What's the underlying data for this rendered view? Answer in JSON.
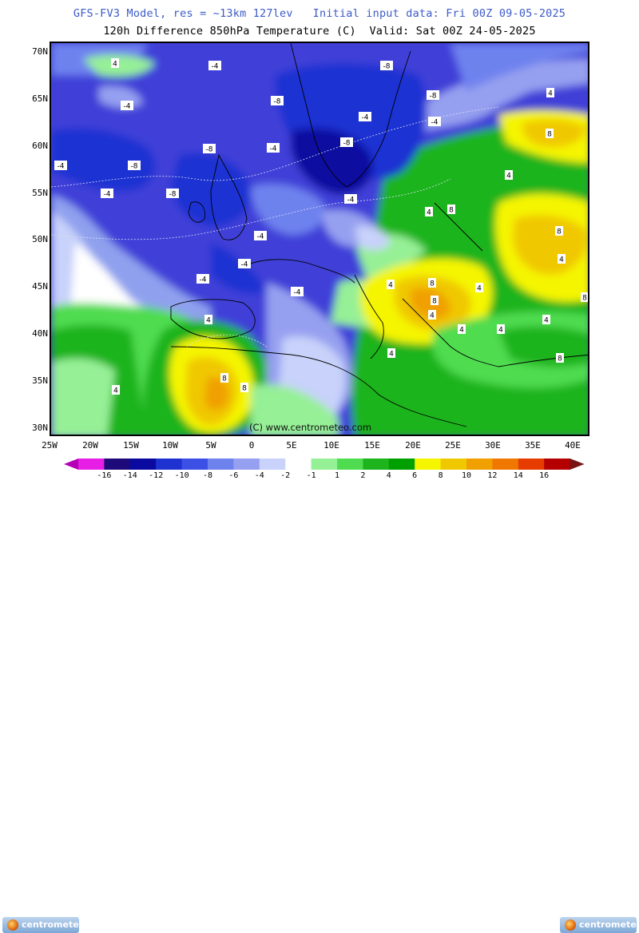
{
  "header": {
    "line1": "GFS-FV3 Model, res = ~13km 127lev   Initial input data: Fri 00Z 09-05-2025",
    "line2": "120h Difference 850hPa Temperature (C)  Valid: Sat 00Z 24-05-2025"
  },
  "axes": {
    "lat_labels": [
      "70N",
      "65N",
      "60N",
      "55N",
      "50N",
      "45N",
      "40N",
      "35N",
      "30N"
    ],
    "lon_labels": [
      "25W",
      "20W",
      "15W",
      "10W",
      "5W",
      "0",
      "5E",
      "10E",
      "15E",
      "20E",
      "25E",
      "30E",
      "35E",
      "40E"
    ]
  },
  "contour_labels": [
    {
      "text": "4"
    },
    {
      "text": "-4"
    },
    {
      "text": "-8"
    },
    {
      "text": "-4"
    },
    {
      "text": "-8"
    },
    {
      "text": "-4"
    },
    {
      "text": "-8"
    },
    {
      "text": "-4"
    },
    {
      "text": "-8"
    },
    {
      "text": "-8"
    },
    {
      "text": "-4"
    },
    {
      "text": "-4"
    },
    {
      "text": "-8"
    },
    {
      "text": "-4"
    },
    {
      "text": "-8"
    },
    {
      "text": "-4"
    },
    {
      "text": "-4"
    },
    {
      "text": "-4"
    },
    {
      "text": "-4"
    },
    {
      "text": "-4"
    },
    {
      "text": "4"
    },
    {
      "text": "4"
    },
    {
      "text": "8"
    },
    {
      "text": "4"
    },
    {
      "text": "4"
    },
    {
      "text": "8"
    },
    {
      "text": "8"
    },
    {
      "text": "8"
    },
    {
      "text": "4"
    },
    {
      "text": "8"
    },
    {
      "text": "8"
    },
    {
      "text": "4"
    },
    {
      "text": "4"
    },
    {
      "text": "4"
    },
    {
      "text": "8"
    },
    {
      "text": "4"
    },
    {
      "text": "8"
    },
    {
      "text": "8"
    },
    {
      "text": "4"
    },
    {
      "text": "4"
    },
    {
      "text": "4"
    },
    {
      "text": "4"
    }
  ],
  "credit": "(C) www.centrometeo.com",
  "legend": {
    "colors": [
      "#b400b4",
      "#e61ee6",
      "#1e0a78",
      "#0a0aa0",
      "#1e32d2",
      "#3c50e6",
      "#6e82ee",
      "#96a0f0",
      "#c8d2fa",
      "#ffffff",
      "#96f096",
      "#50dc50",
      "#1eb41e",
      "#00a000",
      "#f5f500",
      "#f0c800",
      "#f0a000",
      "#f07800",
      "#e63c00",
      "#b40000",
      "#781414"
    ],
    "ticks": [
      "-16",
      "-14",
      "-12",
      "-10",
      "-8",
      "-6",
      "-4",
      "-2",
      "-1",
      "1",
      "2",
      "4",
      "6",
      "8",
      "10",
      "12",
      "14",
      "16"
    ]
  },
  "logo_text": "centrometeo"
}
